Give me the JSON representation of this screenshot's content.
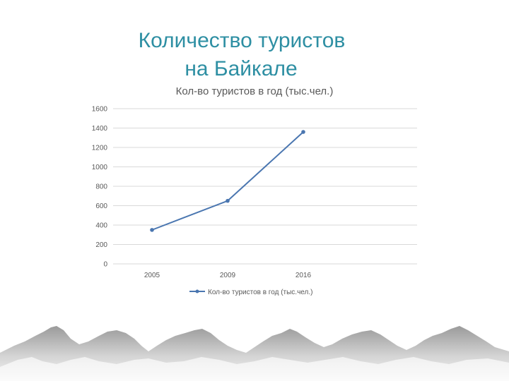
{
  "slide": {
    "title_line1": "Количество туристов",
    "title_line2": "на Байкале"
  },
  "colors": {
    "title": "#2e8fa3",
    "series": "#4a76b0",
    "grid": "#d9d9d9",
    "text": "#595959"
  },
  "chart_data": {
    "type": "line",
    "title": "Кол-во туристов в год (тыс.чел.)",
    "categories": [
      "2005",
      "2009",
      "2016"
    ],
    "series": [
      {
        "name": "Кол-во туристов в год (тыс.чел.)",
        "values": [
          350,
          650,
          1360
        ]
      }
    ],
    "ylim": [
      0,
      1600
    ],
    "yticks": [
      0,
      200,
      400,
      600,
      800,
      1000,
      1200,
      1400,
      1600
    ],
    "grid": true,
    "legend": "bottom"
  }
}
